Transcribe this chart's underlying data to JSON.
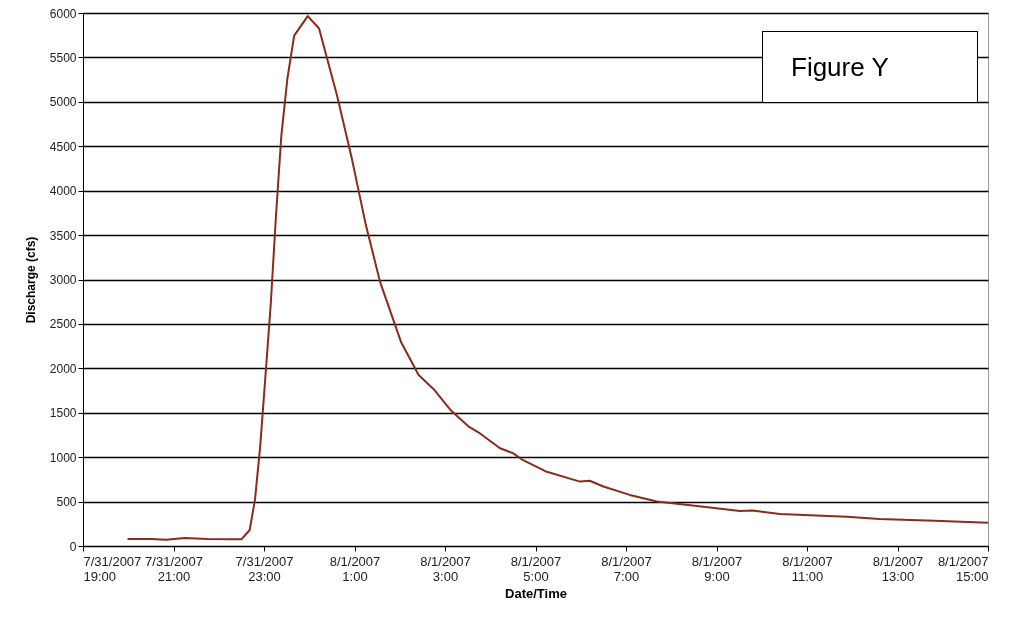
{
  "chart_data": {
    "type": "line",
    "xlabel": "Date/Time",
    "ylabel": "Discharge (cfs)",
    "annotations": [
      "Figure Y"
    ],
    "x": [
      "2007-07-31T20:00",
      "2007-07-31T20:30",
      "2007-07-31T20:50",
      "2007-07-31T21:15",
      "2007-07-31T21:45",
      "2007-07-31T22:20",
      "2007-07-31T22:30",
      "2007-07-31T22:41",
      "2007-07-31T22:48",
      "2007-07-31T22:55",
      "2007-07-31T23:02",
      "2007-07-31T23:09",
      "2007-07-31T23:16",
      "2007-07-31T23:23",
      "2007-07-31T23:31",
      "2007-07-31T23:40",
      "2007-07-31T23:58",
      "2007-08-01T00:13",
      "2007-08-01T00:37",
      "2007-08-01T00:56",
      "2007-08-01T01:15",
      "2007-08-01T01:34",
      "2007-08-01T02:02",
      "2007-08-01T02:25",
      "2007-08-01T02:45",
      "2007-08-01T03:08",
      "2007-08-01T03:32",
      "2007-08-01T03:46",
      "2007-08-01T04:13",
      "2007-08-01T04:30",
      "2007-08-01T04:43",
      "2007-08-01T05:15",
      "2007-08-01T05:59",
      "2007-08-01T06:12",
      "2007-08-01T06:30",
      "2007-08-01T07:05",
      "2007-08-01T07:41",
      "2007-08-01T08:34",
      "2007-08-01T09:31",
      "2007-08-01T09:48",
      "2007-08-01T10:24",
      "2007-08-01T11:53",
      "2007-08-01T12:36",
      "2007-08-01T13:49",
      "2007-08-01T15:00"
    ],
    "series": [
      {
        "color": "#8b2b1c",
        "values": [
          80,
          80,
          70,
          90,
          80,
          75,
          75,
          180,
          520,
          1125,
          1925,
          2730,
          3735,
          4620,
          5260,
          5745,
          5965,
          5825,
          5065,
          4380,
          3615,
          2970,
          2290,
          1925,
          1765,
          1525,
          1340,
          1270,
          1100,
          1045,
          970,
          835,
          725,
          735,
          670,
          575,
          500,
          450,
          395,
          400,
          360,
          330,
          305,
          285,
          262
        ]
      }
    ],
    "xlim": [
      "2007-07-31T19:00",
      "2007-08-01T15:00"
    ],
    "xticks": [
      {
        "value": "2007-07-31T19:00",
        "label": "7/31/2007 19:00"
      },
      {
        "value": "2007-07-31T21:00",
        "label": "7/31/2007 21:00"
      },
      {
        "value": "2007-07-31T23:00",
        "label": "7/31/2007 23:00"
      },
      {
        "value": "2007-08-01T01:00",
        "label": "8/1/2007 1:00"
      },
      {
        "value": "2007-08-01T03:00",
        "label": "8/1/2007 3:00"
      },
      {
        "value": "2007-08-01T05:00",
        "label": "8/1/2007 5:00"
      },
      {
        "value": "2007-08-01T07:00",
        "label": "8/1/2007 7:00"
      },
      {
        "value": "2007-08-01T09:00",
        "label": "8/1/2007 9:00"
      },
      {
        "value": "2007-08-01T11:00",
        "label": "8/1/2007 11:00"
      },
      {
        "value": "2007-08-01T13:00",
        "label": "8/1/2007 13:00"
      },
      {
        "value": "2007-08-01T15:00",
        "label": "8/1/2007 15:00"
      }
    ],
    "ylim": [
      0,
      6000
    ],
    "yticks": [
      0,
      500,
      1000,
      1500,
      2000,
      2500,
      3000,
      3500,
      4000,
      4500,
      5000,
      5500,
      6000
    ],
    "grid": "y",
    "marker": "none",
    "line_style": "solid"
  }
}
